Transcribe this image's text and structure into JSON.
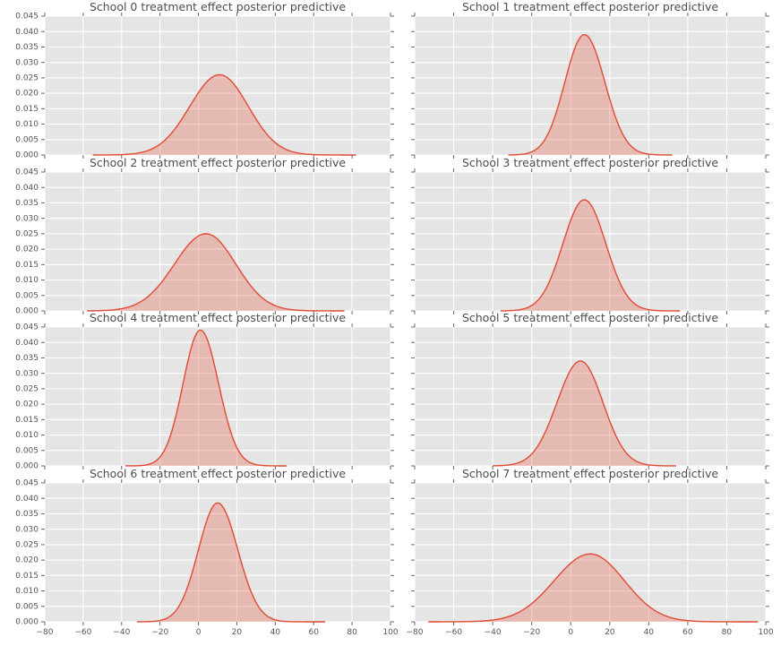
{
  "style": {
    "background": "#ffffff",
    "plot_background": "#e5e5e5",
    "grid_color": "#ffffff",
    "line_color": "#e24a33",
    "fill_color": "rgba(226,74,51,0.28)",
    "tick_color": "#555555",
    "text_color": "#555555",
    "title_color": "#4d4d4d"
  },
  "axes": {
    "xlim": [
      -80,
      100
    ],
    "ylim": [
      0,
      0.045
    ],
    "xticks": [
      -80,
      -60,
      -40,
      -20,
      0,
      20,
      40,
      60,
      80,
      100
    ],
    "yticks": [
      0,
      0.005,
      0.01,
      0.015,
      0.02,
      0.025,
      0.03,
      0.035,
      0.04,
      0.045
    ],
    "grid": true,
    "shared_x": true,
    "shared_y": true
  },
  "chart_data": [
    {
      "type": "area",
      "subtype": "kde",
      "title": "School 0 treatment effect posterior predictive",
      "xlim": [
        -80,
        100
      ],
      "ylim": [
        0,
        0.045
      ],
      "peak_x": 11,
      "peak_density": 0.026,
      "kde": {
        "mean": 11,
        "sd_left": 15.5,
        "sd_right": 15,
        "peak": 0.026,
        "support": [
          -55,
          82
        ]
      }
    },
    {
      "type": "area",
      "subtype": "kde",
      "title": "School 1 treatment effect posterior predictive",
      "xlim": [
        -80,
        100
      ],
      "ylim": [
        0,
        0.045
      ],
      "peak_x": 7,
      "peak_density": 0.039,
      "kde": {
        "mean": 7,
        "sd_left": 10,
        "sd_right": 10.5,
        "peak": 0.039,
        "support": [
          -32,
          52
        ]
      }
    },
    {
      "type": "area",
      "subtype": "kde",
      "title": "School 2 treatment effect posterior predictive",
      "xlim": [
        -80,
        100
      ],
      "ylim": [
        0,
        0.045
      ],
      "peak_x": 4,
      "peak_density": 0.025,
      "kde": {
        "mean": 4,
        "sd_left": 16.5,
        "sd_right": 15.5,
        "peak": 0.025,
        "support": [
          -58,
          76
        ]
      }
    },
    {
      "type": "area",
      "subtype": "kde",
      "title": "School 3 treatment effect posterior predictive",
      "xlim": [
        -80,
        100
      ],
      "ylim": [
        0,
        0.045
      ],
      "peak_x": 7,
      "peak_density": 0.036,
      "kde": {
        "mean": 7,
        "sd_left": 11,
        "sd_right": 11,
        "peak": 0.036,
        "support": [
          -36,
          56
        ]
      }
    },
    {
      "type": "area",
      "subtype": "kde",
      "title": "School 4 treatment effect posterior predictive",
      "xlim": [
        -80,
        100
      ],
      "ylim": [
        0,
        0.045
      ],
      "peak_x": 1,
      "peak_density": 0.044,
      "kde": {
        "mean": 1,
        "sd_left": 9,
        "sd_right": 9.5,
        "peak": 0.044,
        "support": [
          -38,
          46
        ]
      }
    },
    {
      "type": "area",
      "subtype": "kde",
      "title": "School 5 treatment effect posterior predictive",
      "xlim": [
        -80,
        100
      ],
      "ylim": [
        0,
        0.045
      ],
      "peak_x": 5,
      "peak_density": 0.034,
      "kde": {
        "mean": 5,
        "sd_left": 12,
        "sd_right": 11.5,
        "peak": 0.034,
        "support": [
          -40,
          54
        ]
      }
    },
    {
      "type": "area",
      "subtype": "kde",
      "title": "School 6 treatment effect posterior predictive",
      "xlim": [
        -80,
        100
      ],
      "ylim": [
        0,
        0.045
      ],
      "peak_x": 10,
      "peak_density": 0.0385,
      "kde": {
        "mean": 10,
        "sd_left": 10,
        "sd_right": 10.5,
        "peak": 0.0385,
        "support": [
          -32,
          66
        ]
      }
    },
    {
      "type": "area",
      "subtype": "kde",
      "title": "School 7 treatment effect posterior predictive",
      "xlim": [
        -80,
        100
      ],
      "ylim": [
        0,
        0.045
      ],
      "peak_x": 10,
      "peak_density": 0.022,
      "kde": {
        "mean": 10,
        "sd_left": 18.5,
        "sd_right": 17.5,
        "peak": 0.022,
        "support": [
          -73,
          96
        ]
      }
    }
  ]
}
